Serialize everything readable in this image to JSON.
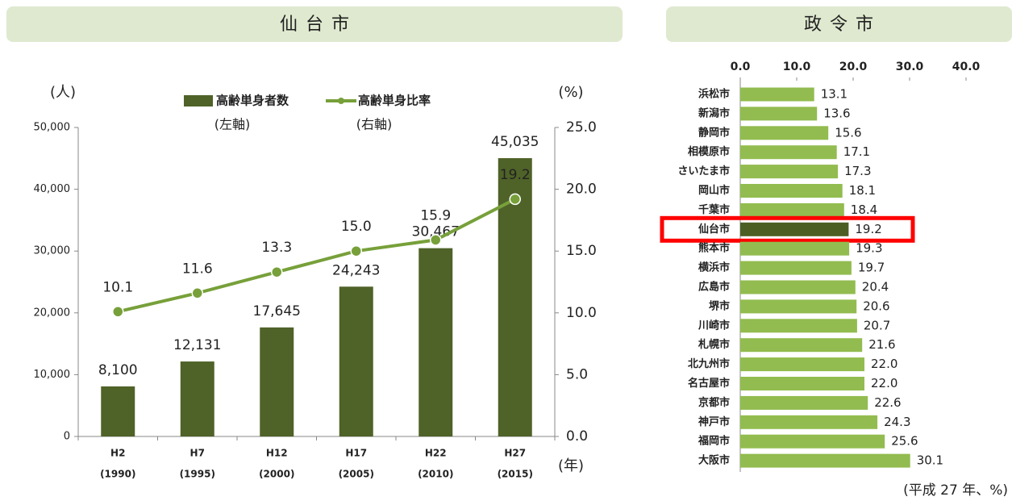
{
  "chart_data": [
    {
      "type": "combo",
      "title": "仙台市",
      "y_unit": "(人)",
      "y2_unit": "(%)",
      "x_unit": "(年)",
      "categories": [
        "H2",
        "H7",
        "H12",
        "H17",
        "H22",
        "H27"
      ],
      "category_years": [
        "(1990)",
        "(1995)",
        "(2000)",
        "(2005)",
        "(2010)",
        "(2015)"
      ],
      "series": [
        {
          "name": "高齢単身者数",
          "legend_note": "(左軸)",
          "type": "bar",
          "color": "#4f6228",
          "values": [
            8100,
            12131,
            17645,
            24243,
            30467,
            45035
          ],
          "value_labels": [
            "8,100",
            "12,131",
            "17,645",
            "24,243",
            "30,467",
            "45,035"
          ]
        },
        {
          "name": "高齢単身比率",
          "legend_note": "(右軸)",
          "type": "line",
          "axis": "y2",
          "color": "#77a03a",
          "values": [
            10.1,
            11.6,
            13.3,
            15.0,
            15.9,
            19.2
          ],
          "value_labels": [
            "10.1",
            "11.6",
            "13.3",
            "15.0",
            "15.9",
            "19.2"
          ]
        }
      ],
      "ylim": [
        0,
        50000
      ],
      "yticks": [
        0,
        {
          "value": 10000,
          "label": "10,000"
        },
        {
          "value": 20000,
          "label": "20,000"
        },
        {
          "value": 30000,
          "label": "30,000"
        },
        {
          "value": 40000,
          "label": "40,000"
        },
        {
          "value": 50000,
          "label": "50,000"
        }
      ],
      "y2lim": [
        0,
        25
      ],
      "y2ticks": [
        {
          "value": 0,
          "label": "0.0"
        },
        {
          "value": 5,
          "label": "5.0"
        },
        {
          "value": 10,
          "label": "10.0"
        },
        {
          "value": 15,
          "label": "15.0"
        },
        {
          "value": 20,
          "label": "20.0"
        },
        {
          "value": 25,
          "label": "25.0"
        }
      ]
    },
    {
      "type": "barh",
      "title": "政令市",
      "note": "(平成 27 年、%)",
      "categories": [
        "浜松市",
        "新潟市",
        "静岡市",
        "相模原市",
        "さいたま市",
        "岡山市",
        "千葉市",
        "仙台市",
        "熊本市",
        "横浜市",
        "広島市",
        "堺市",
        "川崎市",
        "札幌市",
        "北九州市",
        "名古屋市",
        "京都市",
        "神戸市",
        "福岡市",
        "大阪市"
      ],
      "values": [
        13.1,
        13.6,
        15.6,
        17.1,
        17.3,
        18.1,
        18.4,
        19.2,
        19.3,
        19.7,
        20.4,
        20.6,
        20.7,
        21.6,
        22.0,
        22.0,
        22.6,
        24.3,
        25.6,
        30.1
      ],
      "value_labels": [
        "13.1",
        "13.6",
        "15.6",
        "17.1",
        "17.3",
        "18.1",
        "18.4",
        "19.2",
        "19.3",
        "19.7",
        "20.4",
        "20.6",
        "20.7",
        "21.6",
        "22.0",
        "22.0",
        "22.6",
        "24.3",
        "25.6",
        "30.1"
      ],
      "color": "#92bc4f",
      "highlight_index": 7,
      "highlight_color": "#4d5e23",
      "highlight_box_color": "#ff0000",
      "xlim": [
        0,
        40
      ],
      "xticks": [
        {
          "value": 0,
          "label": "0.0"
        },
        {
          "value": 10,
          "label": "10.0"
        },
        {
          "value": 20,
          "label": "20.0"
        },
        {
          "value": 30,
          "label": "30.0"
        },
        {
          "value": 40,
          "label": "40.0"
        }
      ]
    }
  ]
}
